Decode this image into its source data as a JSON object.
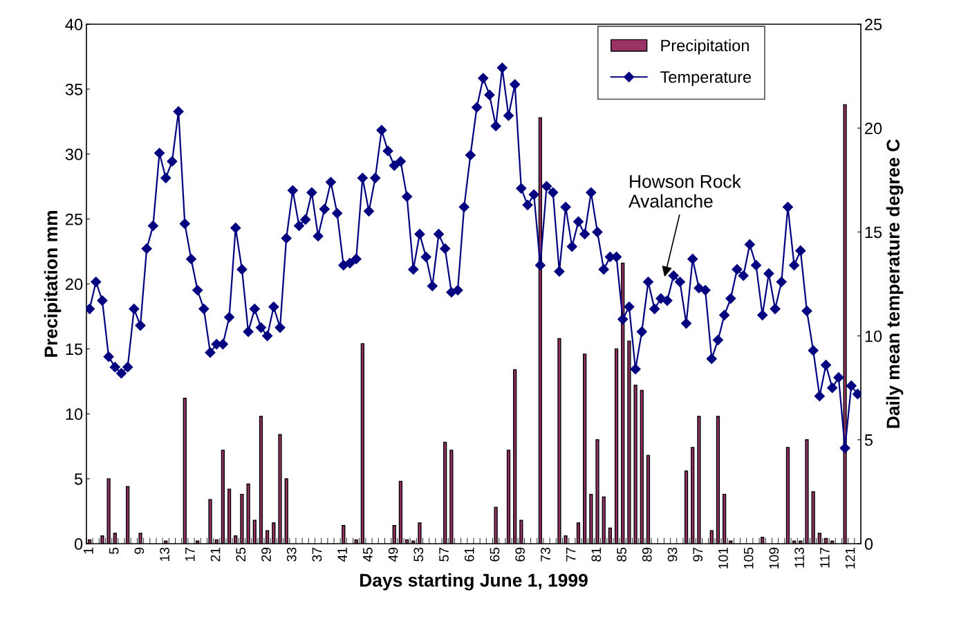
{
  "chart_data": {
    "type": "bar",
    "xlabel": "Days starting June 1, 1999",
    "ylabel": "Precipitation mm",
    "y2label": "Daily mean temperature degree C",
    "categories": [
      "1",
      null,
      null,
      null,
      "5",
      null,
      null,
      null,
      "9",
      null,
      null,
      null,
      "13",
      null,
      null,
      null,
      "17",
      null,
      null,
      null,
      "21",
      null,
      null,
      null,
      "25",
      null,
      null,
      null,
      "29",
      null,
      null,
      null,
      "33",
      null,
      null,
      null,
      "37",
      null,
      null,
      null,
      "41",
      null,
      null,
      null,
      "45",
      null,
      null,
      null,
      "49",
      null,
      null,
      null,
      "53",
      null,
      null,
      null,
      "57",
      null,
      null,
      null,
      "61",
      null,
      null,
      null,
      "65",
      null,
      null,
      null,
      "69",
      null,
      null,
      null,
      "73",
      null,
      null,
      null,
      "77",
      null,
      null,
      null,
      "81",
      null,
      null,
      null,
      "85",
      null,
      null,
      null,
      "89",
      null,
      null,
      null,
      "93",
      null,
      null,
      null,
      "97",
      null,
      null,
      null,
      "101",
      null,
      null,
      null,
      "105",
      null,
      null,
      null,
      "109",
      null,
      null,
      null,
      "113",
      null,
      null,
      null,
      "117",
      null,
      null,
      null,
      "121",
      null
    ],
    "series": [
      {
        "name": "Precipitation",
        "color": "#993366",
        "values": [
          0.3,
          null,
          0.6,
          5.0,
          0.8,
          null,
          4.4,
          null,
          0.8,
          null,
          null,
          null,
          0.2,
          null,
          null,
          11.2,
          null,
          0.2,
          null,
          3.4,
          0.3,
          7.2,
          4.2,
          0.6,
          3.8,
          4.6,
          1.8,
          9.8,
          1.0,
          1.6,
          8.4,
          5.0,
          null,
          null,
          null,
          null,
          null,
          null,
          null,
          null,
          1.4,
          null,
          0.3,
          15.4,
          null,
          null,
          null,
          null,
          1.4,
          4.8,
          0.3,
          0.2,
          1.6,
          null,
          null,
          null,
          7.8,
          7.2,
          null,
          null,
          null,
          null,
          null,
          null,
          2.8,
          null,
          7.2,
          13.4,
          1.8,
          null,
          null,
          32.8,
          null,
          null,
          15.8,
          0.6,
          null,
          1.6,
          14.6,
          3.8,
          8.0,
          3.6,
          1.2,
          15.0,
          21.6,
          15.6,
          12.2,
          11.8,
          6.8,
          null,
          null,
          null,
          null,
          null,
          5.6,
          7.4,
          9.8,
          null,
          1.0,
          9.8,
          3.8,
          0.2,
          null,
          null,
          null,
          null,
          0.5,
          null,
          null,
          null,
          7.4,
          0.2,
          0.2,
          8.0,
          4.0,
          0.8,
          0.4,
          0.2,
          null,
          33.8,
          null,
          null
        ]
      },
      {
        "name": "Temperature",
        "type": "line",
        "axis": "y2",
        "color": "#000080",
        "marker": "diamond",
        "line_style": "solid",
        "values": [
          11.3,
          12.6,
          11.7,
          9.0,
          8.5,
          8.2,
          8.5,
          11.3,
          10.5,
          14.2,
          15.3,
          18.8,
          17.6,
          18.4,
          20.8,
          15.4,
          13.7,
          12.2,
          11.3,
          9.2,
          9.6,
          9.6,
          10.9,
          15.2,
          13.2,
          10.2,
          11.3,
          10.4,
          10.0,
          11.4,
          10.4,
          14.7,
          17.0,
          15.3,
          15.6,
          16.9,
          14.8,
          16.1,
          17.4,
          15.9,
          13.4,
          13.5,
          13.7,
          17.6,
          16.0,
          17.6,
          19.9,
          18.9,
          18.2,
          18.4,
          16.7,
          13.2,
          14.9,
          13.8,
          12.4,
          14.9,
          14.2,
          12.1,
          12.2,
          16.2,
          18.7,
          21.0,
          22.4,
          21.6,
          20.1,
          22.9,
          20.6,
          22.1,
          17.1,
          16.3,
          16.8,
          13.4,
          17.2,
          16.9,
          13.1,
          16.2,
          14.3,
          15.5,
          14.9,
          16.9,
          15.0,
          13.2,
          13.8,
          13.8,
          10.8,
          11.4,
          8.4,
          10.2,
          12.6,
          11.3,
          11.8,
          11.7,
          12.9,
          12.6,
          10.6,
          13.7,
          12.3,
          12.2,
          8.9,
          9.8,
          11.0,
          11.8,
          13.2,
          12.9,
          14.4,
          13.4,
          11.0,
          13.0,
          11.3,
          12.6,
          16.2,
          13.4,
          14.1,
          11.2,
          9.3,
          7.1,
          8.6,
          7.5,
          8.0,
          4.6,
          7.6,
          7.2
        ]
      }
    ],
    "ylim": [
      0,
      40
    ],
    "yticks": [
      0,
      5,
      10,
      15,
      20,
      25,
      30,
      35,
      40
    ],
    "y2lim": [
      0,
      25
    ],
    "y2ticks": [
      0,
      5,
      10,
      15,
      20,
      25
    ],
    "annotations": [
      "Howson Rock\nAvalanche"
    ],
    "legend": "top right",
    "grid": false
  }
}
